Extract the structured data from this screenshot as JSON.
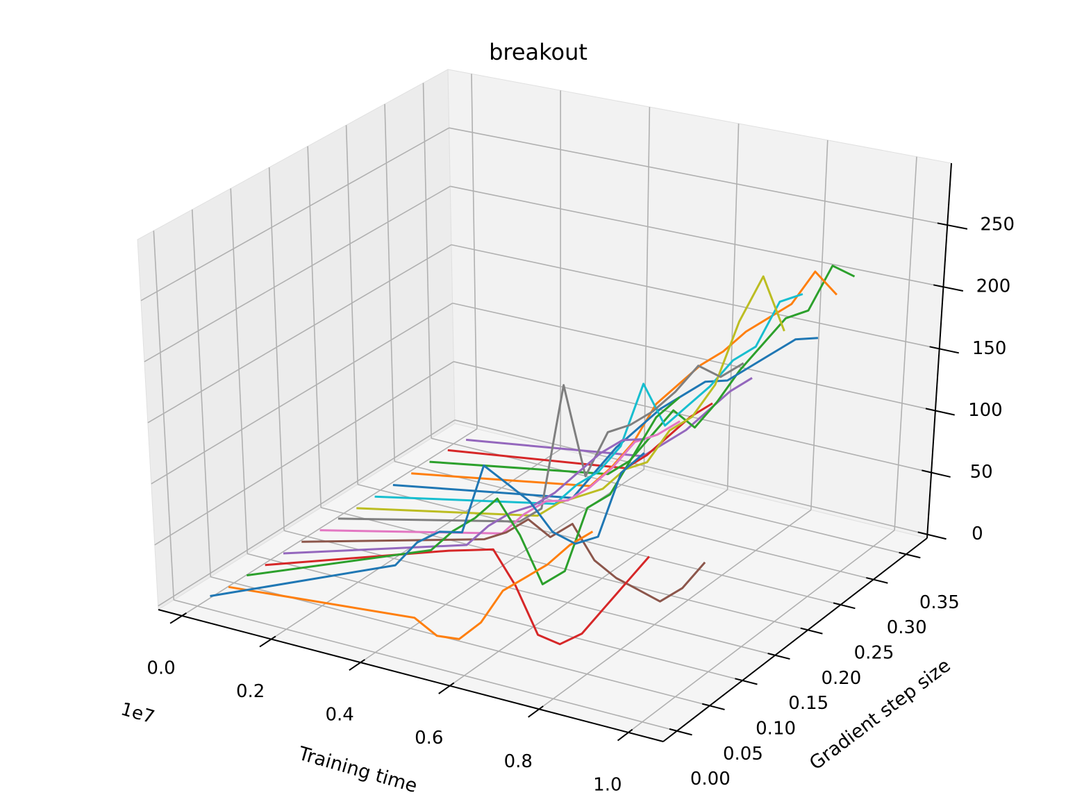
{
  "chart_data": {
    "type": "line3d",
    "title": "breakout",
    "xlabel": "Training time",
    "ylabel": "Gradient step size",
    "x_offset_label": "1e7",
    "xlim": [
      -0.053,
      1.078
    ],
    "ylim": [
      -0.021,
      0.382
    ],
    "zlim": [
      -3,
      300
    ],
    "xticks": [
      {
        "value": 0,
        "label": "0.0"
      },
      0.2,
      0.4,
      0.6,
      0.8,
      {
        "value": 1,
        "label": "1.0"
      }
    ],
    "yticks": [
      {
        "value": 0,
        "label": "0.00"
      },
      0.05,
      {
        "value": 0.1,
        "label": "0.10"
      },
      0.15,
      {
        "value": 0.2,
        "label": "0.20"
      },
      0.25,
      {
        "value": 0.3,
        "label": "0.30"
      },
      0.35
    ],
    "zticks": [
      0,
      50,
      100,
      150,
      200,
      250
    ],
    "grid": true,
    "x": [
      0.03,
      0.45,
      0.5,
      0.55,
      0.6,
      0.65,
      0.7,
      0.75,
      0.8,
      0.85,
      0.9,
      0.95,
      1.0
    ],
    "series": [
      {
        "y": 0.0,
        "color": "#1f77b4",
        "values": [
          8,
          72,
          95,
          108,
          112,
          170,
          160,
          150,
          130,
          125,
          135,
          190,
          210
        ]
      },
      {
        "y": 0.025,
        "color": "#ff7f0e",
        "values": [
          6,
          20,
          10,
          12,
          30,
          60,
          75,
          90,
          110,
          125,
          null,
          null,
          null
        ]
      },
      {
        "y": 0.05,
        "color": "#2ca02c",
        "values": [
          6,
          65,
          85,
          100,
          120,
          95,
          60,
          75,
          130,
          145,
          180,
          215,
          235
        ]
      },
      {
        "y": 0.075,
        "color": "#d62728",
        "values": [
          5,
          55,
          60,
          65,
          40,
          5,
          2,
          15,
          40,
          65,
          90,
          null,
          null
        ]
      },
      {
        "y": 0.1,
        "color": "#9467bd",
        "values": [
          5,
          50,
          70,
          85,
          95,
          110,
          130,
          150,
          165,
          170,
          null,
          null,
          null
        ]
      },
      {
        "y": 0.125,
        "color": "#8c564b",
        "values": [
          5,
          45,
          55,
          70,
          60,
          75,
          50,
          40,
          35,
          30,
          45,
          70,
          null
        ]
      },
      {
        "y": 0.15,
        "color": "#e377c2",
        "values": [
          5,
          40,
          60,
          75,
          80,
          95,
          115,
          140,
          150,
          165,
          null,
          null,
          null
        ]
      },
      {
        "y": 0.175,
        "color": "#7f7f7f",
        "values": [
          5,
          40,
          55,
          160,
          90,
          130,
          140,
          155,
          175,
          200,
          195,
          210,
          null
        ]
      },
      {
        "y": 0.2,
        "color": "#bcbd22",
        "values": [
          4,
          35,
          50,
          60,
          70,
          90,
          100,
          130,
          145,
          175,
          230,
          270,
          230
        ]
      },
      {
        "y": 0.225,
        "color": "#17becf",
        "values": [
          4,
          35,
          55,
          70,
          95,
          150,
          120,
          140,
          160,
          185,
          200,
          240,
          250
        ]
      },
      {
        "y": 0.25,
        "color": "#1f77b4",
        "values": [
          4,
          30,
          55,
          80,
          100,
          120,
          135,
          150,
          155,
          170,
          185,
          200,
          205
        ]
      },
      {
        "y": 0.275,
        "color": "#ff7f0e",
        "values": [
          4,
          30,
          50,
          75,
          110,
          130,
          150,
          165,
          185,
          200,
          215,
          245,
          230
        ]
      },
      {
        "y": 0.3,
        "color": "#2ca02c",
        "values": [
          4,
          30,
          45,
          70,
          95,
          85,
          110,
          140,
          165,
          190,
          200,
          240,
          235
        ]
      },
      {
        "y": 0.325,
        "color": "#d62728",
        "values": [
          4,
          25,
          40,
          60,
          80,
          95,
          null,
          null,
          null,
          null,
          null,
          null,
          null
        ]
      },
      {
        "y": 0.35,
        "color": "#9467bd",
        "values": [
          3,
          25,
          40,
          55,
          75,
          95,
          110,
          null,
          null,
          null,
          null,
          null,
          null
        ]
      }
    ]
  }
}
